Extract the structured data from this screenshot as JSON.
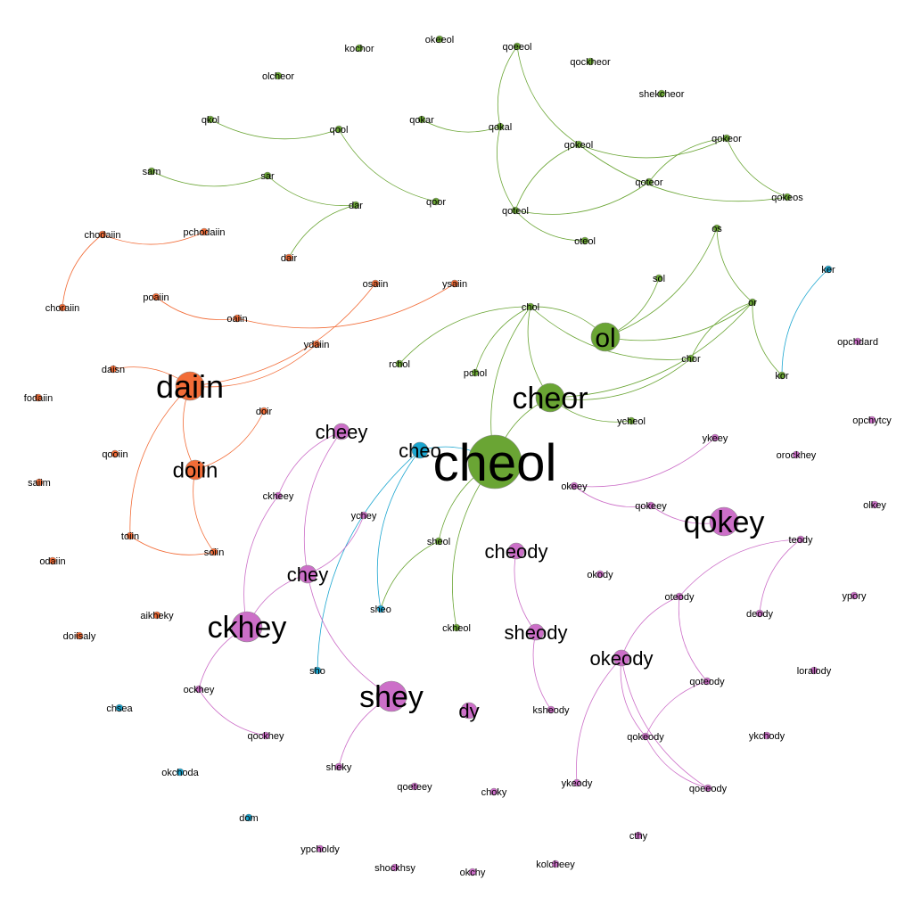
{
  "colors": {
    "green": "#6aa534",
    "orange": "#f26c37",
    "purple": "#cc6fc8",
    "blue": "#1ba6d0"
  },
  "nodes": [
    {
      "id": "cheol",
      "label": "cheol",
      "group": "green",
      "degree": 10
    },
    {
      "id": "cheor",
      "label": "cheor",
      "group": "green",
      "degree": 6
    },
    {
      "id": "ol",
      "label": "ol",
      "group": "green",
      "degree": 5
    },
    {
      "id": "qokey",
      "label": "qokey",
      "group": "purple",
      "degree": 6
    },
    {
      "id": "daiin",
      "label": "daiin",
      "group": "orange",
      "degree": 6
    },
    {
      "id": "doiin",
      "label": "doiin",
      "group": "orange",
      "degree": 5
    },
    {
      "id": "ckhey",
      "label": "ckhey",
      "group": "purple",
      "degree": 6
    },
    {
      "id": "shey",
      "label": "shey",
      "group": "purple",
      "degree": 6
    },
    {
      "id": "cheey",
      "label": "cheey",
      "group": "purple",
      "degree": 4
    },
    {
      "id": "chey",
      "label": "chey",
      "group": "purple",
      "degree": 4
    },
    {
      "id": "cheody",
      "label": "cheody",
      "group": "purple",
      "degree": 3
    },
    {
      "id": "sheody",
      "label": "sheody",
      "group": "purple",
      "degree": 3
    },
    {
      "id": "okeody",
      "label": "okeody",
      "group": "purple",
      "degree": 4
    },
    {
      "id": "dy",
      "label": "dy",
      "group": "purple",
      "degree": 3
    },
    {
      "id": "cheo",
      "label": "cheo",
      "group": "blue",
      "degree": 3
    },
    {
      "id": "kochor",
      "label": "kochor",
      "group": "green",
      "degree": 1
    },
    {
      "id": "okeeol",
      "label": "okeeol",
      "group": "green",
      "degree": 1
    },
    {
      "id": "qoeeol",
      "label": "qoeeol",
      "group": "green",
      "degree": 1
    },
    {
      "id": "qockheor",
      "label": "qockheor",
      "group": "green",
      "degree": 1
    },
    {
      "id": "olcheor",
      "label": "olcheor",
      "group": "green",
      "degree": 1
    },
    {
      "id": "shekcheor",
      "label": "shekcheor",
      "group": "green",
      "degree": 1
    },
    {
      "id": "qkol",
      "label": "qkol",
      "group": "green",
      "degree": 1
    },
    {
      "id": "qool",
      "label": "qool",
      "group": "green",
      "degree": 1
    },
    {
      "id": "qokar",
      "label": "qokar",
      "group": "green",
      "degree": 1
    },
    {
      "id": "qokal",
      "label": "qokal",
      "group": "green",
      "degree": 1
    },
    {
      "id": "qokeol",
      "label": "qokeol",
      "group": "green",
      "degree": 1
    },
    {
      "id": "qokeor",
      "label": "qokeor",
      "group": "green",
      "degree": 1
    },
    {
      "id": "sam",
      "label": "sam",
      "group": "green",
      "degree": 1
    },
    {
      "id": "sar",
      "label": "sar",
      "group": "green",
      "degree": 1
    },
    {
      "id": "qoteor",
      "label": "qoteor",
      "group": "green",
      "degree": 1
    },
    {
      "id": "qokeos",
      "label": "qokeos",
      "group": "green",
      "degree": 1
    },
    {
      "id": "dar",
      "label": "dar",
      "group": "green",
      "degree": 1
    },
    {
      "id": "qoor",
      "label": "qoor",
      "group": "green",
      "degree": 1
    },
    {
      "id": "qoteol",
      "label": "qoteol",
      "group": "green",
      "degree": 1
    },
    {
      "id": "oteol",
      "label": "oteol",
      "group": "green",
      "degree": 1
    },
    {
      "id": "chodaiin",
      "label": "chodaiin",
      "group": "orange",
      "degree": 1
    },
    {
      "id": "pchodaiin",
      "label": "pchodaiin",
      "group": "orange",
      "degree": 1
    },
    {
      "id": "dair",
      "label": "dair",
      "group": "orange",
      "degree": 1
    },
    {
      "id": "os",
      "label": "os",
      "group": "green",
      "degree": 1
    },
    {
      "id": "ker",
      "label": "ker",
      "group": "blue",
      "degree": 1
    },
    {
      "id": "sol",
      "label": "sol",
      "group": "green",
      "degree": 1
    },
    {
      "id": "osaiin",
      "label": "osaiin",
      "group": "orange",
      "degree": 1
    },
    {
      "id": "ysaiin",
      "label": "ysaiin",
      "group": "orange",
      "degree": 1
    },
    {
      "id": "poaiin",
      "label": "poaiin",
      "group": "orange",
      "degree": 1
    },
    {
      "id": "choraiin",
      "label": "choraiin",
      "group": "orange",
      "degree": 1
    },
    {
      "id": "oaiin",
      "label": "oaiin",
      "group": "orange",
      "degree": 1
    },
    {
      "id": "chol",
      "label": "chol",
      "group": "green",
      "degree": 1
    },
    {
      "id": "or",
      "label": "or",
      "group": "green",
      "degree": 1
    },
    {
      "id": "ydaiin",
      "label": "ydaiin",
      "group": "orange",
      "degree": 1
    },
    {
      "id": "opchdard",
      "label": "opchdard",
      "group": "purple",
      "degree": 1
    },
    {
      "id": "chor",
      "label": "chor",
      "group": "green",
      "degree": 1
    },
    {
      "id": "rchol",
      "label": "rchol",
      "group": "green",
      "degree": 1
    },
    {
      "id": "pchol",
      "label": "pchol",
      "group": "green",
      "degree": 1
    },
    {
      "id": "kor",
      "label": "kor",
      "group": "green",
      "degree": 1
    },
    {
      "id": "daisn",
      "label": "daisn",
      "group": "orange",
      "degree": 1
    },
    {
      "id": "fodaiin",
      "label": "fodaiin",
      "group": "orange",
      "degree": 1
    },
    {
      "id": "doir",
      "label": "doir",
      "group": "orange",
      "degree": 1
    },
    {
      "id": "ycheol",
      "label": "ycheol",
      "group": "green",
      "degree": 1
    },
    {
      "id": "opchytcy",
      "label": "opchytcy",
      "group": "purple",
      "degree": 1
    },
    {
      "id": "ykeey",
      "label": "ykeey",
      "group": "purple",
      "degree": 1
    },
    {
      "id": "qooiin",
      "label": "qooiin",
      "group": "orange",
      "degree": 1
    },
    {
      "id": "orockhey",
      "label": "orockhey",
      "group": "purple",
      "degree": 1
    },
    {
      "id": "okeey",
      "label": "okeey",
      "group": "purple",
      "degree": 1
    },
    {
      "id": "saiim",
      "label": "saiim",
      "group": "orange",
      "degree": 1
    },
    {
      "id": "ckheey",
      "label": "ckheey",
      "group": "purple",
      "degree": 1
    },
    {
      "id": "olkey",
      "label": "olkey",
      "group": "purple",
      "degree": 1
    },
    {
      "id": "qokeey",
      "label": "qokeey",
      "group": "purple",
      "degree": 1
    },
    {
      "id": "ychey",
      "label": "ychey",
      "group": "purple",
      "degree": 1
    },
    {
      "id": "toiin",
      "label": "toiin",
      "group": "orange",
      "degree": 1
    },
    {
      "id": "sheol",
      "label": "sheol",
      "group": "green",
      "degree": 1
    },
    {
      "id": "teody",
      "label": "teody",
      "group": "purple",
      "degree": 1
    },
    {
      "id": "soiin",
      "label": "soiin",
      "group": "orange",
      "degree": 1
    },
    {
      "id": "odaiin",
      "label": "odaiin",
      "group": "orange",
      "degree": 1
    },
    {
      "id": "okody",
      "label": "okody",
      "group": "purple",
      "degree": 1
    },
    {
      "id": "oteody",
      "label": "oteody",
      "group": "purple",
      "degree": 1
    },
    {
      "id": "ypory",
      "label": "ypory",
      "group": "purple",
      "degree": 1
    },
    {
      "id": "sheo",
      "label": "sheo",
      "group": "blue",
      "degree": 1
    },
    {
      "id": "aikheky",
      "label": "aikheky",
      "group": "orange",
      "degree": 1
    },
    {
      "id": "deody",
      "label": "deody",
      "group": "purple",
      "degree": 1
    },
    {
      "id": "doiisaly",
      "label": "doiisaly",
      "group": "orange",
      "degree": 1
    },
    {
      "id": "ckheol",
      "label": "ckheol",
      "group": "green",
      "degree": 1
    },
    {
      "id": "sho",
      "label": "sho",
      "group": "blue",
      "degree": 1
    },
    {
      "id": "loralody",
      "label": "loralody",
      "group": "purple",
      "degree": 1
    },
    {
      "id": "qoteody",
      "label": "qoteody",
      "group": "purple",
      "degree": 1
    },
    {
      "id": "ockhey",
      "label": "ockhey",
      "group": "purple",
      "degree": 1
    },
    {
      "id": "chsea",
      "label": "chsea",
      "group": "blue",
      "degree": 1
    },
    {
      "id": "ksheody",
      "label": "ksheody",
      "group": "purple",
      "degree": 1
    },
    {
      "id": "qockhey",
      "label": "qockhey",
      "group": "purple",
      "degree": 1
    },
    {
      "id": "qokeody",
      "label": "qokeody",
      "group": "purple",
      "degree": 1
    },
    {
      "id": "ykchody",
      "label": "ykchody",
      "group": "purple",
      "degree": 1
    },
    {
      "id": "okchoda",
      "label": "okchoda",
      "group": "blue",
      "degree": 1
    },
    {
      "id": "sheky",
      "label": "sheky",
      "group": "purple",
      "degree": 1
    },
    {
      "id": "qoeteey",
      "label": "qoeteey",
      "group": "purple",
      "degree": 1
    },
    {
      "id": "choky",
      "label": "choky",
      "group": "purple",
      "degree": 1
    },
    {
      "id": "ykeody",
      "label": "ykeody",
      "group": "purple",
      "degree": 1
    },
    {
      "id": "qoeeody",
      "label": "qoeeody",
      "group": "purple",
      "degree": 1
    },
    {
      "id": "dom",
      "label": "dom",
      "group": "blue",
      "degree": 1
    },
    {
      "id": "cthy",
      "label": "cthy",
      "group": "purple",
      "degree": 1
    },
    {
      "id": "ypcholdy",
      "label": "ypcholdy",
      "group": "purple",
      "degree": 1
    },
    {
      "id": "shockhsy",
      "label": "shockhsy",
      "group": "purple",
      "degree": 1
    },
    {
      "id": "okchy",
      "label": "okchy",
      "group": "purple",
      "degree": 1
    },
    {
      "id": "kolcheey",
      "label": "kolcheey",
      "group": "purple",
      "degree": 1
    }
  ],
  "edges": [
    {
      "source": "qkol",
      "target": "qool",
      "group": "green"
    },
    {
      "source": "qool",
      "target": "qoor",
      "group": "green"
    },
    {
      "source": "sam",
      "target": "sar",
      "group": "green"
    },
    {
      "source": "sar",
      "target": "dar",
      "group": "green"
    },
    {
      "source": "dar",
      "target": "dair",
      "group": "green"
    },
    {
      "source": "qokar",
      "target": "qokal",
      "group": "green"
    },
    {
      "source": "qoeeol",
      "target": "qokal",
      "group": "green"
    },
    {
      "source": "qoeeol",
      "target": "qokeol",
      "group": "green"
    },
    {
      "source": "qokal",
      "target": "qoteol",
      "group": "green"
    },
    {
      "source": "qokeol",
      "target": "qoteol",
      "group": "green"
    },
    {
      "source": "qokeol",
      "target": "qokeor",
      "group": "green"
    },
    {
      "source": "qokeol",
      "target": "qokeos",
      "group": "green"
    },
    {
      "source": "qokeor",
      "target": "qoteor",
      "group": "green"
    },
    {
      "source": "qokeor",
      "target": "qokeos",
      "group": "green"
    },
    {
      "source": "qoteol",
      "target": "oteol",
      "group": "green"
    },
    {
      "source": "qoteol",
      "target": "qoteor",
      "group": "green"
    },
    {
      "source": "ol",
      "target": "os",
      "group": "green"
    },
    {
      "source": "ol",
      "target": "sol",
      "group": "green"
    },
    {
      "source": "ol",
      "target": "or",
      "group": "green"
    },
    {
      "source": "ol",
      "target": "chol",
      "group": "green"
    },
    {
      "source": "os",
      "target": "or",
      "group": "green"
    },
    {
      "source": "or",
      "target": "chor",
      "group": "green"
    },
    {
      "source": "or",
      "target": "kor",
      "group": "green"
    },
    {
      "source": "ker",
      "target": "kor",
      "group": "blue"
    },
    {
      "source": "chol",
      "target": "rchol",
      "group": "green"
    },
    {
      "source": "chol",
      "target": "pchol",
      "group": "green"
    },
    {
      "source": "chol",
      "target": "chor",
      "group": "green"
    },
    {
      "source": "chol",
      "target": "cheor",
      "group": "green"
    },
    {
      "source": "chol",
      "target": "cheol",
      "group": "green"
    },
    {
      "source": "cheor",
      "target": "chor",
      "group": "green"
    },
    {
      "source": "cheor",
      "target": "or",
      "group": "green"
    },
    {
      "source": "cheor",
      "target": "cheol",
      "group": "green"
    },
    {
      "source": "cheor",
      "target": "ycheol",
      "group": "green"
    },
    {
      "source": "cheol",
      "target": "sheol",
      "group": "green"
    },
    {
      "source": "cheol",
      "target": "ckheol",
      "group": "green"
    },
    {
      "source": "cheol",
      "target": "cheo",
      "group": "blue"
    },
    {
      "source": "cheo",
      "target": "sheo",
      "group": "blue"
    },
    {
      "source": "cheo",
      "target": "sho",
      "group": "blue"
    },
    {
      "source": "sheol",
      "target": "sheo",
      "group": "green"
    },
    {
      "source": "chodaiin",
      "target": "pchodaiin",
      "group": "orange"
    },
    {
      "source": "chodaiin",
      "target": "choraiin",
      "group": "orange"
    },
    {
      "source": "poaiin",
      "target": "oaiin",
      "group": "orange"
    },
    {
      "source": "oaiin",
      "target": "ysaiin",
      "group": "orange"
    },
    {
      "source": "daiin",
      "target": "osaiin",
      "group": "orange"
    },
    {
      "source": "daiin",
      "target": "ydaiin",
      "group": "orange"
    },
    {
      "source": "daiin",
      "target": "daisn",
      "group": "orange"
    },
    {
      "source": "daiin",
      "target": "doiin",
      "group": "orange"
    },
    {
      "source": "daiin",
      "target": "toiin",
      "group": "orange"
    },
    {
      "source": "doiin",
      "target": "doir",
      "group": "orange"
    },
    {
      "source": "doiin",
      "target": "soiin",
      "group": "orange"
    },
    {
      "source": "toiin",
      "target": "soiin",
      "group": "orange"
    },
    {
      "source": "cheey",
      "target": "ckheey",
      "group": "purple"
    },
    {
      "source": "cheey",
      "target": "chey",
      "group": "purple"
    },
    {
      "source": "ckheey",
      "target": "ckhey",
      "group": "purple"
    },
    {
      "source": "chey",
      "target": "ychey",
      "group": "purple"
    },
    {
      "source": "chey",
      "target": "shey",
      "group": "purple"
    },
    {
      "source": "chey",
      "target": "ckhey",
      "group": "purple"
    },
    {
      "source": "ckhey",
      "target": "ockhey",
      "group": "purple"
    },
    {
      "source": "ockhey",
      "target": "qockhey",
      "group": "purple"
    },
    {
      "source": "shey",
      "target": "sheky",
      "group": "purple"
    },
    {
      "source": "okeey",
      "target": "ykeey",
      "group": "purple"
    },
    {
      "source": "okeey",
      "target": "qokeey",
      "group": "purple"
    },
    {
      "source": "qokeey",
      "target": "qokey",
      "group": "purple"
    },
    {
      "source": "cheody",
      "target": "sheody",
      "group": "purple"
    },
    {
      "source": "sheody",
      "target": "ksheody",
      "group": "purple"
    },
    {
      "source": "teody",
      "target": "oteody",
      "group": "purple"
    },
    {
      "source": "teody",
      "target": "deody",
      "group": "purple"
    },
    {
      "source": "oteody",
      "target": "okeody",
      "group": "purple"
    },
    {
      "source": "oteody",
      "target": "qoteody",
      "group": "purple"
    },
    {
      "source": "okeody",
      "target": "qokeody",
      "group": "purple"
    },
    {
      "source": "okeody",
      "target": "ykeody",
      "group": "purple"
    },
    {
      "source": "qoteody",
      "target": "qokeody",
      "group": "purple"
    },
    {
      "source": "qokeody",
      "target": "qoeeody",
      "group": "purple"
    },
    {
      "source": "okeody",
      "target": "qoeeody",
      "group": "purple"
    }
  ]
}
